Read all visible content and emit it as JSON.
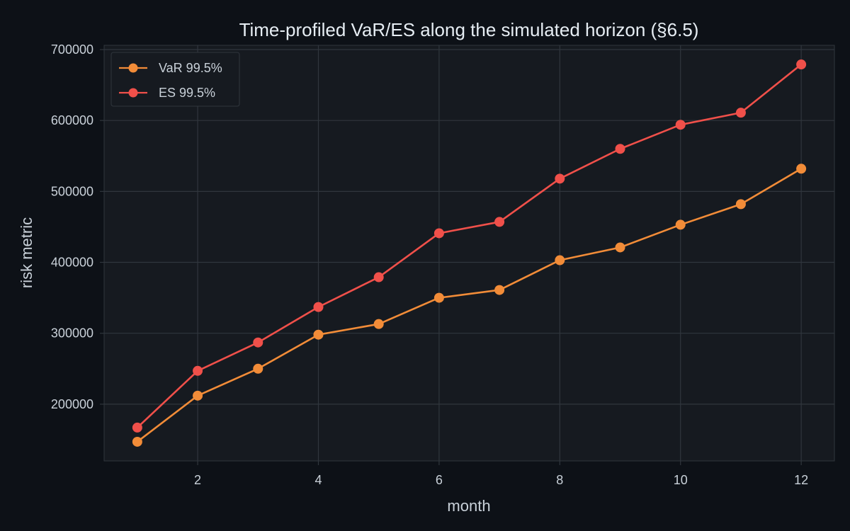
{
  "colors": {
    "page_background": "#0d1117",
    "plot_background": "#161a20",
    "grid": "#30363d",
    "axis_text": "#c9d1d9",
    "title_text": "#e6edf3",
    "var_series": "#f28c38",
    "es_series": "#f0504a"
  },
  "chart_data": {
    "type": "line",
    "title": "Time-profiled VaR/ES along the simulated horizon (§6.5)",
    "xlabel": "month",
    "ylabel": "risk metric",
    "x": [
      1,
      2,
      3,
      4,
      5,
      6,
      7,
      8,
      9,
      10,
      11,
      12
    ],
    "xlim": [
      0.45,
      12.55
    ],
    "ylim": [
      120000,
      706000
    ],
    "xticks": [
      2,
      4,
      6,
      8,
      10,
      12
    ],
    "yticks": [
      200000,
      300000,
      400000,
      500000,
      600000,
      700000
    ],
    "grid": true,
    "legend_position": "top-left",
    "series": [
      {
        "name": "VaR 99.5%",
        "color": "#f28c38",
        "values": [
          147000,
          212000,
          250000,
          298000,
          313000,
          350000,
          361000,
          403000,
          421000,
          453000,
          482000,
          532000
        ]
      },
      {
        "name": "ES 99.5%",
        "color": "#f0504a",
        "values": [
          167000,
          247000,
          287000,
          337000,
          379000,
          441000,
          457000,
          518000,
          560000,
          594000,
          611000,
          679000
        ]
      }
    ]
  }
}
